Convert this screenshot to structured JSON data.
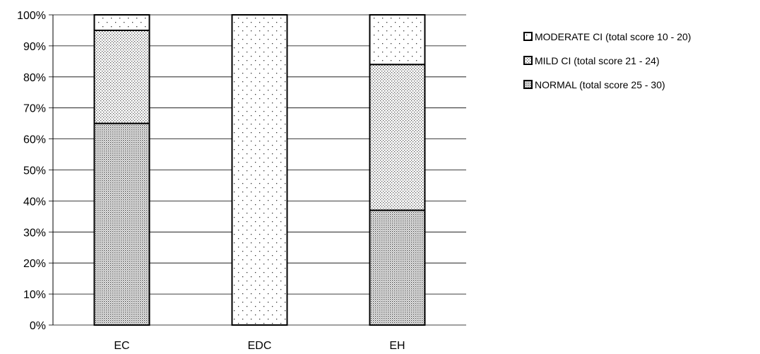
{
  "chart_data": {
    "type": "bar",
    "stacked": true,
    "percent_stacked": true,
    "categories": [
      "EC",
      "EDC",
      "EH"
    ],
    "series": [
      {
        "name": "NORMAL (total score 25 - 30)",
        "values": [
          65,
          0,
          37
        ],
        "pattern": "dense-dots"
      },
      {
        "name": "MILD CI (total score 21 - 24)",
        "values": [
          30,
          0,
          47
        ],
        "pattern": "medium-dots"
      },
      {
        "name": "MODERATE CI (total score 10 - 20)",
        "values": [
          5,
          100,
          16
        ],
        "pattern": "sparse-dots"
      }
    ],
    "y_ticks": [
      "0%",
      "10%",
      "20%",
      "30%",
      "40%",
      "50%",
      "60%",
      "70%",
      "80%",
      "90%",
      "100%"
    ],
    "ylim": [
      0,
      100
    ],
    "grid": true,
    "legend_position": "right",
    "legend_order": [
      "MODERATE CI (total score 10 - 20)",
      "MILD CI (total score 21 - 24)",
      "NORMAL (total score 25 - 30)"
    ],
    "colors": {
      "outline": "#000000",
      "grid": "#000000",
      "background": "#ffffff"
    }
  }
}
